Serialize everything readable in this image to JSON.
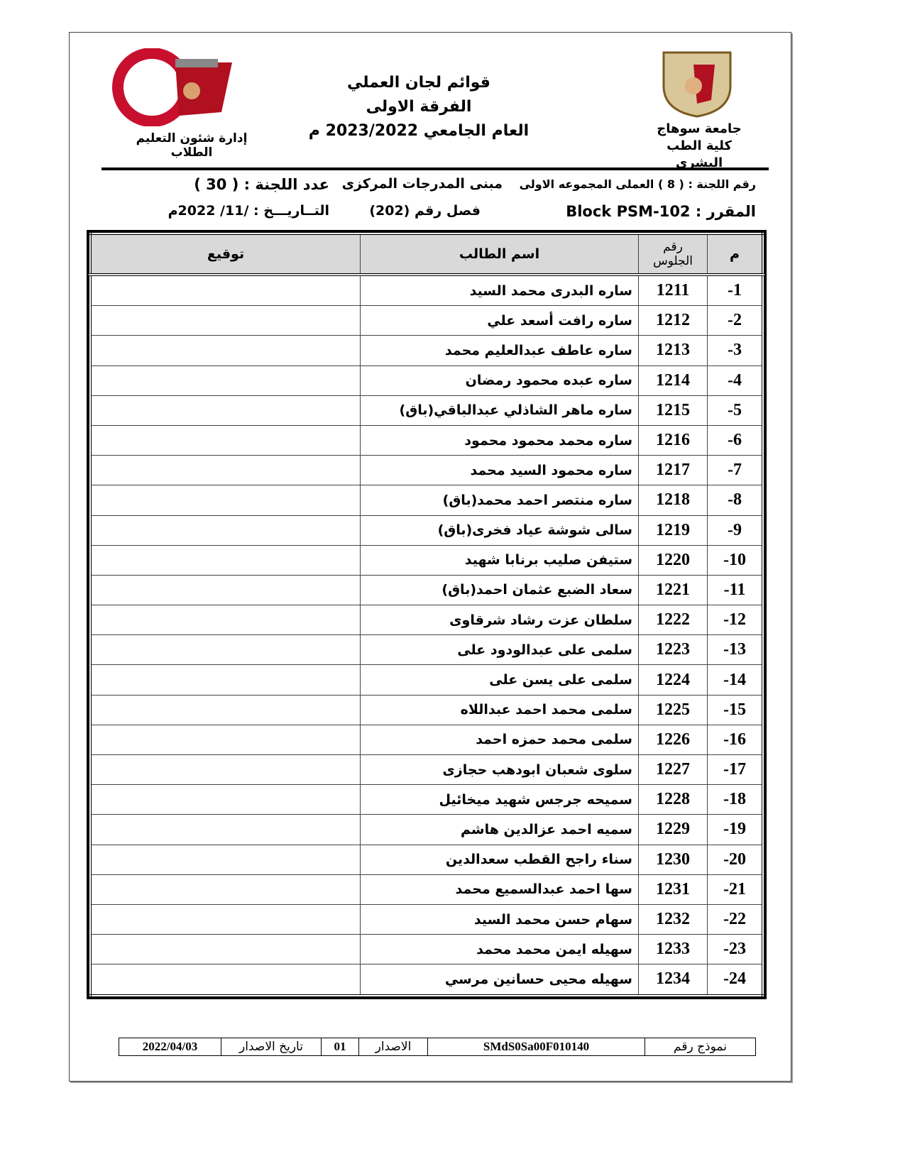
{
  "header": {
    "title_lines": [
      "قوائم لجان العملي",
      "الفرقة الاولى",
      "العام الجامعي 2023/2022 م"
    ],
    "right_org": [
      "جامعة سوهاج",
      "كلية الطب البشرى"
    ],
    "left_org": "إدارة شئون التعليم الطلاب",
    "left_logo_text": "جامعة سوهاج كلية الطب"
  },
  "info": {
    "committee_no": "رقم اللجنة : ( 8 ) العملى المجموعه الاولى",
    "course": "المقرر : Block PSM-102",
    "building": "مبنى المدرجات المركزى",
    "room": "فصل رقم (202)",
    "committee_count": "عدد اللجنة : ( 30 )",
    "date": "التــاريـــخ :     /11/ 2022م"
  },
  "table": {
    "headers": [
      "م",
      "رقم الجلوس",
      "اسم الطالب",
      "توقيع"
    ],
    "rows": [
      [
        "-1",
        "1211",
        "ساره البدرى محمد السيد"
      ],
      [
        "-2",
        "1212",
        "ساره رافت أسعد علي"
      ],
      [
        "-3",
        "1213",
        "ساره عاطف عبدالعليم محمد"
      ],
      [
        "-4",
        "1214",
        "ساره عبده محمود رمضان"
      ],
      [
        "-5",
        "1215",
        "ساره ماهر الشاذلي عبدالباقي(باق)"
      ],
      [
        "-6",
        "1216",
        "ساره محمد محمود محمود"
      ],
      [
        "-7",
        "1217",
        "ساره محمود السيد محمد"
      ],
      [
        "-8",
        "1218",
        "ساره منتصر احمد محمد(باق)"
      ],
      [
        "-9",
        "1219",
        "سالى شوشة عياد فخرى(باق)"
      ],
      [
        "-10",
        "1220",
        "ستيفن صليب برنابا شهيد"
      ],
      [
        "-11",
        "1221",
        "سعاد الضبع عثمان احمد(باق)"
      ],
      [
        "-12",
        "1222",
        "سلطان عزت رشاد شرقاوى"
      ],
      [
        "-13",
        "1223",
        "سلمى على عبدالودود على"
      ],
      [
        "-14",
        "1224",
        "سلمى على يسن على"
      ],
      [
        "-15",
        "1225",
        "سلمى محمد احمد عبداللاه"
      ],
      [
        "-16",
        "1226",
        "سلمى محمد حمزه احمد"
      ],
      [
        "-17",
        "1227",
        "سلوى شعبان ابودهب حجازى"
      ],
      [
        "-18",
        "1228",
        "سميحه جرجس شهيد ميخائيل"
      ],
      [
        "-19",
        "1229",
        "سميه احمد عزالدين هاشم"
      ],
      [
        "-20",
        "1230",
        "سناء راجح القطب سعدالدين"
      ],
      [
        "-21",
        "1231",
        "سها احمد عبدالسميع محمد"
      ],
      [
        "-22",
        "1232",
        "سهام حسن محمد السيد"
      ],
      [
        "-23",
        "1233",
        "سهيله ايمن محمد محمد"
      ],
      [
        "-24",
        "1234",
        "سهيله محيى حسانين مرسي"
      ]
    ]
  },
  "footer": {
    "form_label": "نموذج رقم",
    "form_no": "SMdS0Sa00F010140",
    "version_label": "الاصدار",
    "version": "01",
    "date_label": "تاريخ الاصدار",
    "date": "2022/04/03"
  }
}
